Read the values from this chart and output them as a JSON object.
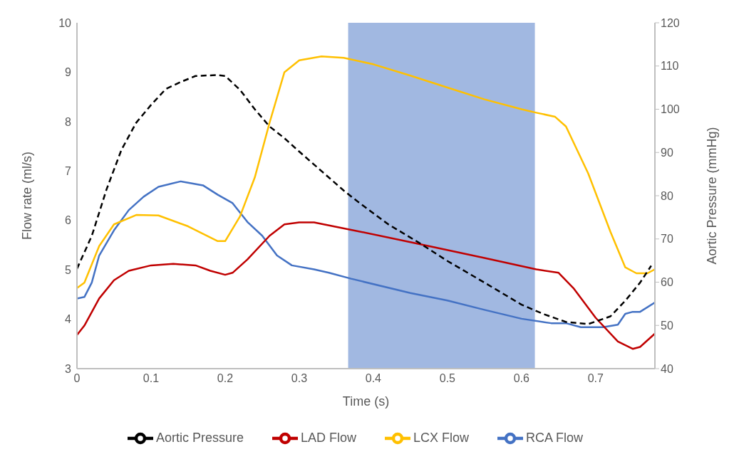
{
  "chart_data": {
    "type": "line",
    "xlabel": "Time (s)",
    "ylabel": "Flow rate (ml/s)",
    "y2label": "Aortic Pressure (mmHg)",
    "xlim": [
      0,
      0.78
    ],
    "xticks": [
      0,
      0.1,
      0.2,
      0.3,
      0.4,
      0.5,
      0.6,
      0.7
    ],
    "ylim": [
      3,
      10
    ],
    "yticks": [
      3,
      4,
      5,
      6,
      7,
      8,
      9,
      10
    ],
    "y2lim": [
      40,
      120
    ],
    "y2ticks": [
      40,
      50,
      60,
      70,
      80,
      90,
      100,
      110,
      120
    ],
    "grid": false,
    "legend": "bottom",
    "marker": "none",
    "bands": [
      {
        "axis": "x",
        "from": 0.366,
        "to": 0.618,
        "color": "#4472c4"
      }
    ],
    "series": [
      {
        "name": "RCA Flow",
        "color": "#4472c4",
        "line_style": "solid",
        "x": [
          0,
          0.01,
          0.02,
          0.03,
          0.05,
          0.07,
          0.09,
          0.11,
          0.14,
          0.17,
          0.19,
          0.21,
          0.23,
          0.25,
          0.27,
          0.29,
          0.32,
          0.34,
          0.37,
          0.45,
          0.5,
          0.55,
          0.6,
          0.64,
          0.66,
          0.68,
          0.71,
          0.73,
          0.74,
          0.75,
          0.76,
          0.78
        ],
        "values": [
          4.42,
          4.45,
          4.74,
          5.29,
          5.8,
          6.21,
          6.48,
          6.68,
          6.79,
          6.71,
          6.52,
          6.35,
          5.97,
          5.69,
          5.29,
          5.09,
          5.01,
          4.94,
          4.82,
          4.53,
          4.38,
          4.19,
          4.01,
          3.92,
          3.92,
          3.84,
          3.84,
          3.89,
          4.11,
          4.15,
          4.15,
          4.34
        ]
      },
      {
        "name": "LAD Flow",
        "color": "#c00000",
        "line_style": "solid",
        "x": [
          0,
          0.01,
          0.03,
          0.05,
          0.07,
          0.1,
          0.13,
          0.16,
          0.18,
          0.2,
          0.21,
          0.23,
          0.26,
          0.28,
          0.3,
          0.32,
          0.37,
          0.45,
          0.55,
          0.62,
          0.65,
          0.67,
          0.7,
          0.73,
          0.75,
          0.76,
          0.78
        ],
        "values": [
          3.68,
          3.87,
          4.42,
          4.79,
          4.98,
          5.09,
          5.12,
          5.09,
          4.98,
          4.9,
          4.94,
          5.21,
          5.69,
          5.92,
          5.96,
          5.96,
          5.81,
          5.56,
          5.24,
          5.01,
          4.94,
          4.63,
          4.03,
          3.55,
          3.4,
          3.44,
          3.71
        ]
      },
      {
        "name": "LCX Flow",
        "color": "#ffc000",
        "line_style": "solid",
        "x": [
          0,
          0.01,
          0.03,
          0.05,
          0.08,
          0.11,
          0.15,
          0.19,
          0.2,
          0.22,
          0.24,
          0.26,
          0.28,
          0.3,
          0.33,
          0.36,
          0.4,
          0.45,
          0.5,
          0.55,
          0.6,
          0.62,
          0.645,
          0.66,
          0.69,
          0.72,
          0.74,
          0.755,
          0.77,
          0.78
        ],
        "values": [
          4.63,
          4.74,
          5.48,
          5.92,
          6.11,
          6.1,
          5.88,
          5.58,
          5.58,
          6.08,
          6.87,
          7.98,
          9.0,
          9.24,
          9.32,
          9.29,
          9.16,
          8.93,
          8.69,
          8.45,
          8.25,
          8.18,
          8.1,
          7.9,
          6.95,
          5.77,
          5.05,
          4.93,
          4.93,
          5.01
        ]
      },
      {
        "name": "Aortic Pressure",
        "color": "#000000",
        "line_style": "dashed",
        "axis": "y2",
        "x": [
          0,
          0.02,
          0.04,
          0.06,
          0.08,
          0.1,
          0.12,
          0.14,
          0.16,
          0.19,
          0.2,
          0.22,
          0.24,
          0.26,
          0.28,
          0.3,
          0.33,
          0.36,
          0.38,
          0.42,
          0.46,
          0.5,
          0.55,
          0.6,
          0.63,
          0.66,
          0.69,
          0.72,
          0.74,
          0.76,
          0.775
        ],
        "values": [
          63.1,
          70.7,
          81.5,
          90.6,
          96.9,
          101.0,
          104.7,
          106.3,
          107.7,
          107.9,
          107.7,
          104.5,
          100.0,
          96.0,
          93.3,
          90.2,
          85.7,
          81.2,
          78.5,
          73.4,
          69.3,
          64.9,
          59.9,
          54.8,
          52.6,
          50.8,
          50.3,
          52.1,
          55.7,
          59.9,
          63.8
        ]
      }
    ]
  }
}
